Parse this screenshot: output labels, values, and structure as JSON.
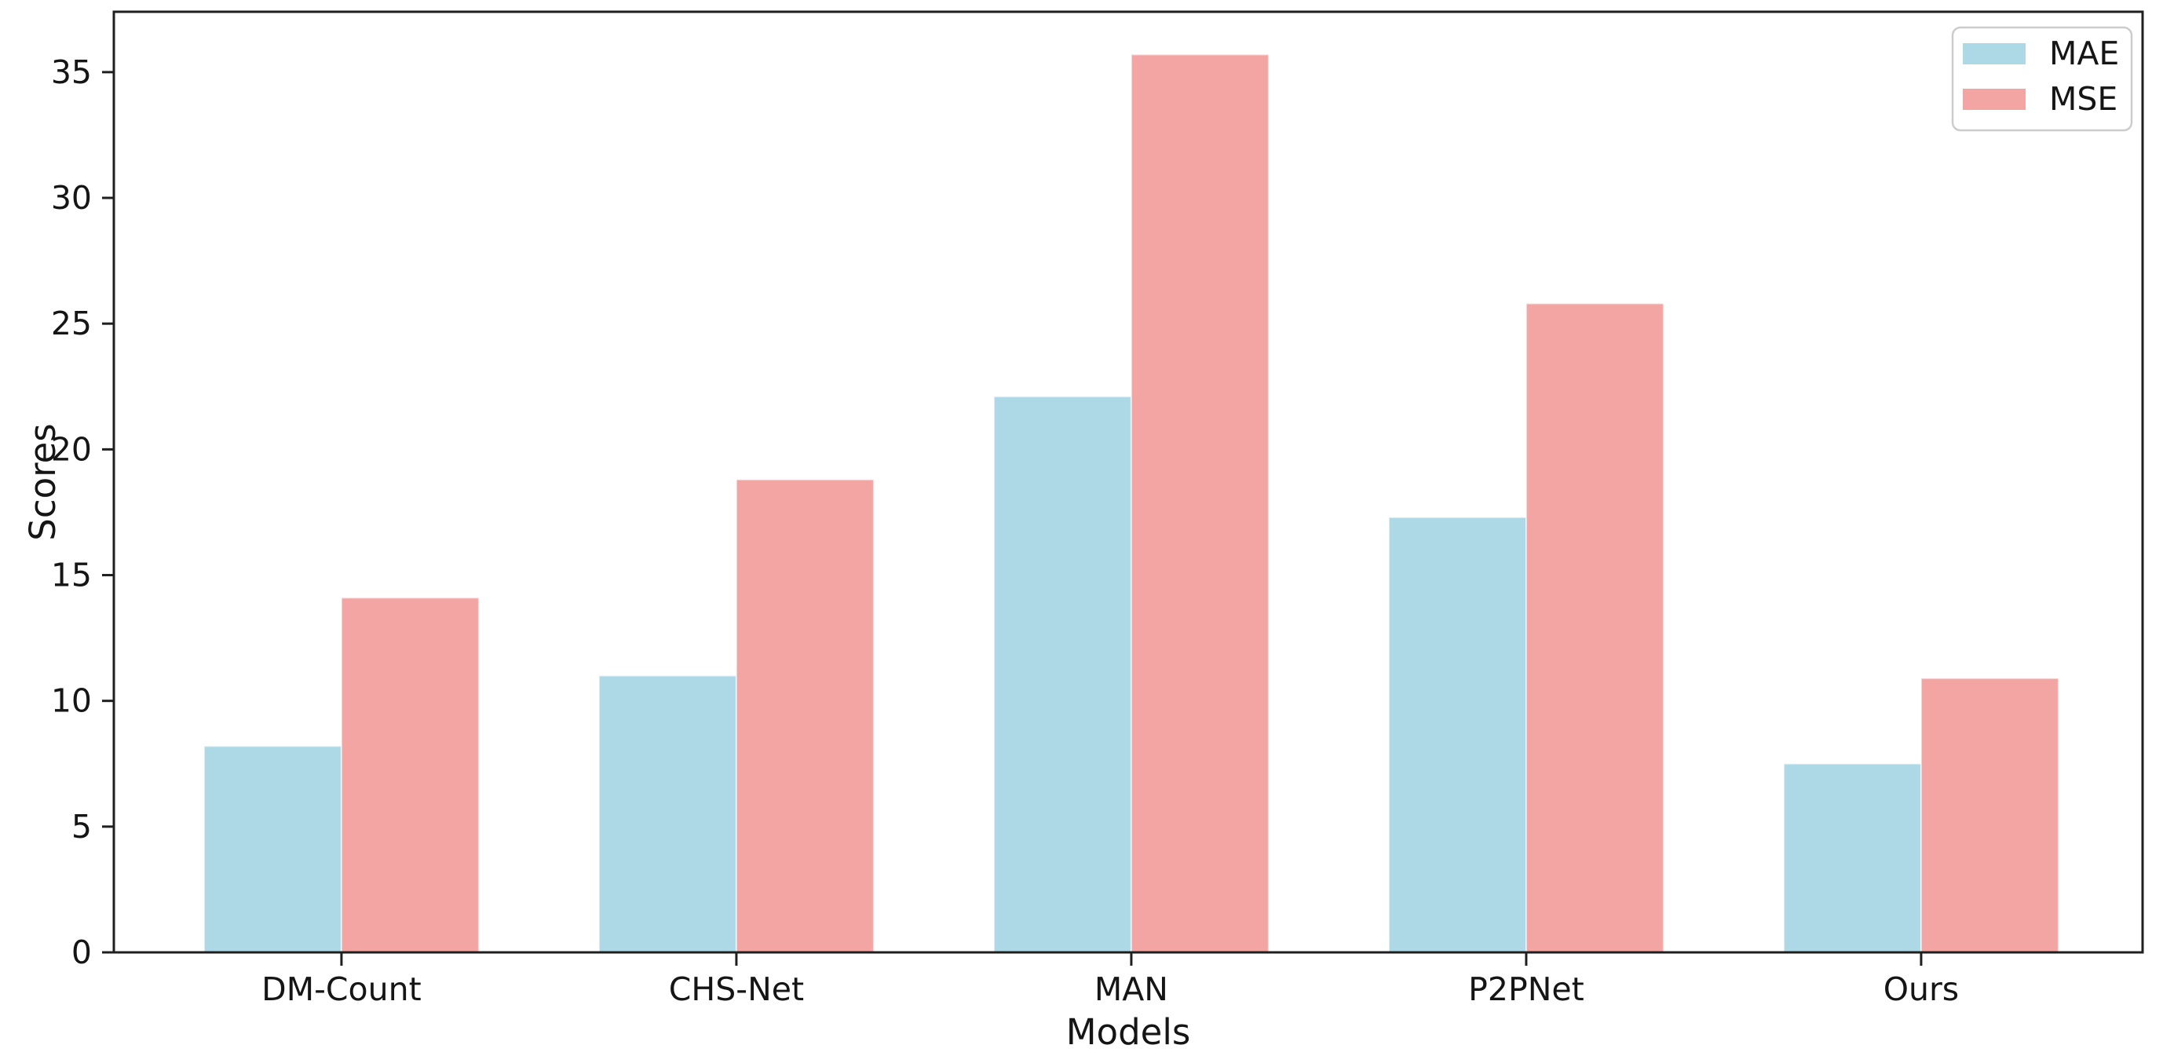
{
  "chart_data": {
    "type": "bar",
    "title": "",
    "xlabel": "Models",
    "ylabel": "Scores",
    "categories": [
      "DM-Count",
      "CHS-Net",
      "MAN",
      "P2PNet",
      "Ours"
    ],
    "series": [
      {
        "name": "MAE",
        "color": "#ADD8E6",
        "values": [
          8.2,
          11.0,
          22.1,
          17.3,
          7.5
        ]
      },
      {
        "name": "MSE",
        "color": "#F3A5A4",
        "values": [
          14.1,
          18.8,
          35.7,
          25.8,
          10.9
        ]
      }
    ],
    "ylim": [
      0,
      37.4
    ],
    "yticks": [
      0,
      5,
      10,
      15,
      20,
      25,
      30,
      35
    ],
    "grid": false,
    "legend": {
      "position": "upper right",
      "entries": [
        "MAE",
        "MSE"
      ]
    }
  },
  "style": {
    "spine_color": "#1f1f1f",
    "text_color": "#151515",
    "legend_border_color": "#cccccc",
    "background": "#ffffff"
  }
}
